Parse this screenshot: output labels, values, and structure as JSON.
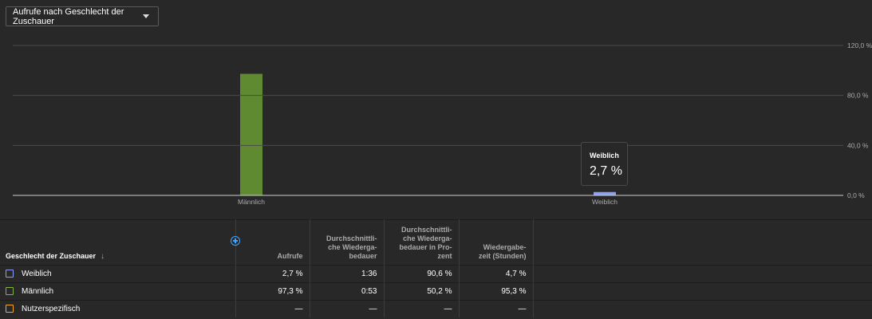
{
  "metric_selector": {
    "label": "Aufrufe nach Geschlecht der Zuschauer"
  },
  "chart_data": {
    "type": "bar",
    "categories": [
      "Männlich",
      "Weiblich"
    ],
    "values": [
      97.3,
      2.7
    ],
    "colors": [
      "#5f8a31",
      "#8b9ff5"
    ],
    "yticks": [
      "120,0 %",
      "80,0 %",
      "40,0 %",
      "0,0 %"
    ],
    "ytick_values": [
      120,
      80,
      40,
      0
    ],
    "ylim": [
      0,
      120
    ],
    "grid": true
  },
  "tooltip": {
    "label": "Weiblich",
    "value": "2,7 %"
  },
  "table": {
    "headers": {
      "dimension": "Geschlecht der Zuschauer",
      "views": "Aufrufe",
      "avg_duration": [
        "Durchschnittli-",
        "che Wiederga-",
        "bedauer"
      ],
      "avg_percent": [
        "Durchschnittli-",
        "che Wiederga-",
        "bedauer in Pro-",
        "zent"
      ],
      "watch_time": [
        "Wiedergabe-",
        "zeit (Stunden)"
      ]
    },
    "rows": [
      {
        "label": "Weiblich",
        "color": "#8b9ff5",
        "views": "2,7 %",
        "avg_duration": "1:36",
        "avg_percent": "90,6 %",
        "watch_time": "4,7 %"
      },
      {
        "label": "Männlich",
        "color": "#7cb342",
        "views": "97,3 %",
        "avg_duration": "0:53",
        "avg_percent": "50,2 %",
        "watch_time": "95,3 %"
      },
      {
        "label": "Nutzerspezifisch",
        "color": "#f9a825",
        "views": "—",
        "avg_duration": "—",
        "avg_percent": "—",
        "watch_time": "—"
      }
    ]
  }
}
